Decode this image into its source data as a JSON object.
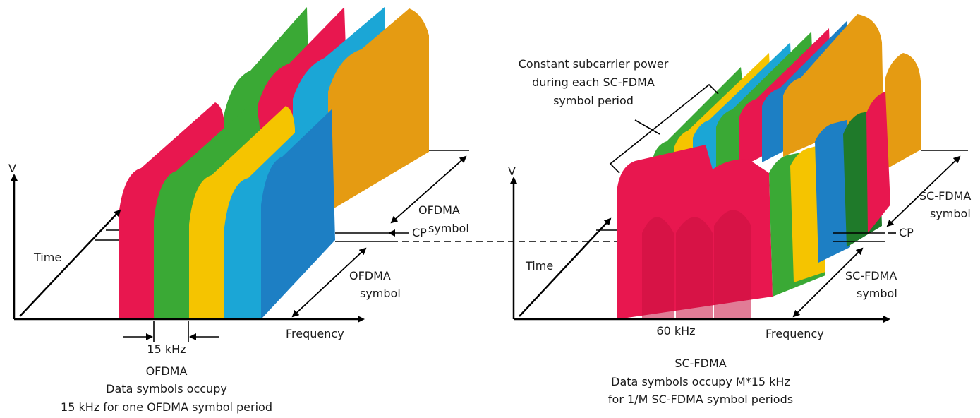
{
  "ofdma": {
    "axis_v": "V",
    "axis_time": "Time",
    "axis_frequency": "Frequency",
    "cp": "CP",
    "symbol_upper": [
      "OFDMA",
      "symbol"
    ],
    "symbol_lower": [
      "OFDMA",
      "symbol"
    ],
    "subcarrier_width": "15 kHz",
    "caption": [
      "OFDMA",
      "Data symbols occupy",
      "15 kHz for one OFDMA symbol period"
    ]
  },
  "scfdma": {
    "axis_v": "V",
    "axis_time": "Time",
    "axis_frequency": "Frequency",
    "cp": "CP",
    "symbol_upper": [
      "SC-FDMA",
      "symbol"
    ],
    "symbol_lower": [
      "SC-FDMA",
      "symbol"
    ],
    "bandwidth": "60 kHz",
    "callout": [
      "Constant subcarrier power",
      "during each SC-FDMA",
      "symbol period"
    ],
    "caption": [
      "SC-FDMA",
      "Data symbols occupy M*15 kHz",
      "for 1/M SC-FDMA symbol periods"
    ]
  },
  "colors": {
    "red": "#e8174f",
    "green": "#3aa935",
    "green_dark": "#1f7a2a",
    "yellow": "#f5c400",
    "orange": "#e59b12",
    "blue": "#1d7fc4",
    "cyan": "#1ba6d6"
  }
}
